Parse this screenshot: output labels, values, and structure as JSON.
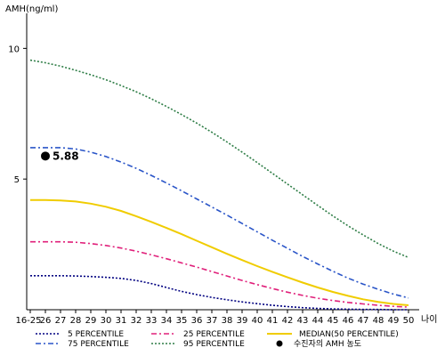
{
  "chart_data": {
    "type": "line",
    "ylabel": "AMH(ng/ml)",
    "xlabel": "나이",
    "ylim": [
      0,
      11
    ],
    "y_ticks": [
      5,
      10
    ],
    "categories": [
      "16-25",
      "26",
      "27",
      "28",
      "29",
      "30",
      "31",
      "32",
      "33",
      "34",
      "35",
      "36",
      "37",
      "38",
      "39",
      "40",
      "41",
      "42",
      "43",
      "44",
      "45",
      "46",
      "47",
      "48",
      "49",
      "50"
    ],
    "series": [
      {
        "name": "5 PERCENTILE",
        "color": "#000080",
        "dash": "2,2",
        "values": [
          1.3,
          1.3,
          1.3,
          1.29,
          1.27,
          1.24,
          1.2,
          1.12,
          1.0,
          0.85,
          0.7,
          0.58,
          0.47,
          0.38,
          0.3,
          0.23,
          0.17,
          0.12,
          0.08,
          0.05,
          0.03,
          0.02,
          0.01,
          0.01,
          0.0,
          0.0
        ]
      },
      {
        "name": "25 PERCENTILE",
        "color": "#e0207a",
        "dash": "6,3,2,3",
        "values": [
          2.6,
          2.6,
          2.6,
          2.58,
          2.53,
          2.46,
          2.36,
          2.24,
          2.1,
          1.95,
          1.79,
          1.63,
          1.46,
          1.29,
          1.12,
          0.96,
          0.81,
          0.67,
          0.55,
          0.44,
          0.35,
          0.28,
          0.22,
          0.17,
          0.13,
          0.1
        ]
      },
      {
        "name": "MEDIAN(50 PERCENTILE)",
        "color": "#f0cc00",
        "dash": "",
        "values": [
          4.2,
          4.2,
          4.18,
          4.14,
          4.06,
          3.94,
          3.78,
          3.58,
          3.36,
          3.13,
          2.89,
          2.64,
          2.39,
          2.14,
          1.9,
          1.67,
          1.45,
          1.24,
          1.04,
          0.85,
          0.68,
          0.53,
          0.4,
          0.3,
          0.22,
          0.17
        ]
      },
      {
        "name": "75 PERCENTILE",
        "color": "#2a55c8",
        "dash": "6,3,2,3",
        "values": [
          6.2,
          6.2,
          6.2,
          6.15,
          6.03,
          5.86,
          5.65,
          5.41,
          5.14,
          4.85,
          4.55,
          4.24,
          3.93,
          3.62,
          3.3,
          2.98,
          2.66,
          2.35,
          2.04,
          1.75,
          1.47,
          1.21,
          0.98,
          0.78,
          0.6,
          0.45
        ]
      },
      {
        "name": "95 PERCENTILE",
        "color": "#2e7d46",
        "dash": "2,2",
        "values": [
          9.55,
          9.45,
          9.32,
          9.16,
          8.99,
          8.8,
          8.58,
          8.34,
          8.07,
          7.78,
          7.47,
          7.14,
          6.79,
          6.42,
          6.03,
          5.63,
          5.22,
          4.81,
          4.4,
          3.99,
          3.59,
          3.21,
          2.86,
          2.53,
          2.24,
          2.0
        ]
      }
    ],
    "patient": {
      "name": "수진자의 AMH 농도",
      "x": "26",
      "y": 5.88,
      "label": "5.88"
    },
    "legend_position": "bottom",
    "grid": false
  }
}
